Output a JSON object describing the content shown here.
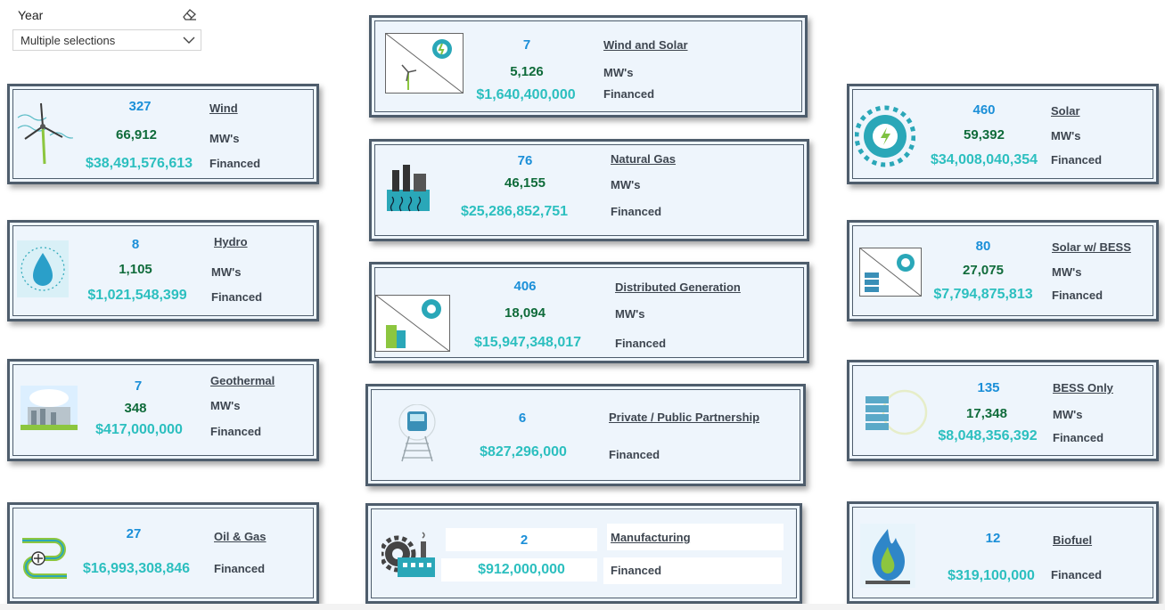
{
  "slicer": {
    "title": "Year",
    "value": "Multiple selections",
    "eraser_icon": "eraser-icon",
    "chevron_icon": "chevron-down-icon"
  },
  "labels": {
    "mw": "MW's",
    "financed": "Financed"
  },
  "cards": {
    "wind_solar": {
      "category": "Wind and Solar",
      "count": "7",
      "mw": "5,126",
      "financed": "$1,640,400,000"
    },
    "wind": {
      "category": "Wind",
      "count": "327",
      "mw": "66,912",
      "financed": "$38,491,576,613"
    },
    "solar": {
      "category": "Solar",
      "count": "460",
      "mw": "59,392",
      "financed": "$34,008,040,354"
    },
    "natural_gas": {
      "category": "Natural Gas",
      "count": "76",
      "mw": "46,155",
      "financed": "$25,286,852,751"
    },
    "hydro": {
      "category": "Hydro",
      "count": "8",
      "mw": "1,105",
      "financed": "$1,021,548,399"
    },
    "solar_bess": {
      "category": "Solar w/ BESS",
      "count": "80",
      "mw": "27,075",
      "financed": "$7,794,875,813"
    },
    "distributed": {
      "category": "Distributed Generation",
      "count": "406",
      "mw": "18,094",
      "financed": "$15,947,348,017"
    },
    "geothermal": {
      "category": "Geothermal",
      "count": "7",
      "mw": "348",
      "financed": "$417,000,000"
    },
    "ppp": {
      "category": "Private / Public Partnership",
      "count": "6",
      "financed": "$827,296,000"
    },
    "bess_only": {
      "category": "BESS Only",
      "count": "135",
      "mw": "17,348",
      "financed": "$8,048,356,392"
    },
    "oil_gas": {
      "category": "Oil & Gas",
      "count": "27",
      "financed": "$16,993,308,846"
    },
    "manufacturing": {
      "category": "Manufacturing",
      "count": "2",
      "financed": "$912,000,000"
    },
    "biofuel": {
      "category": "Biofuel",
      "count": "12",
      "financed": "$319,100,000"
    }
  }
}
